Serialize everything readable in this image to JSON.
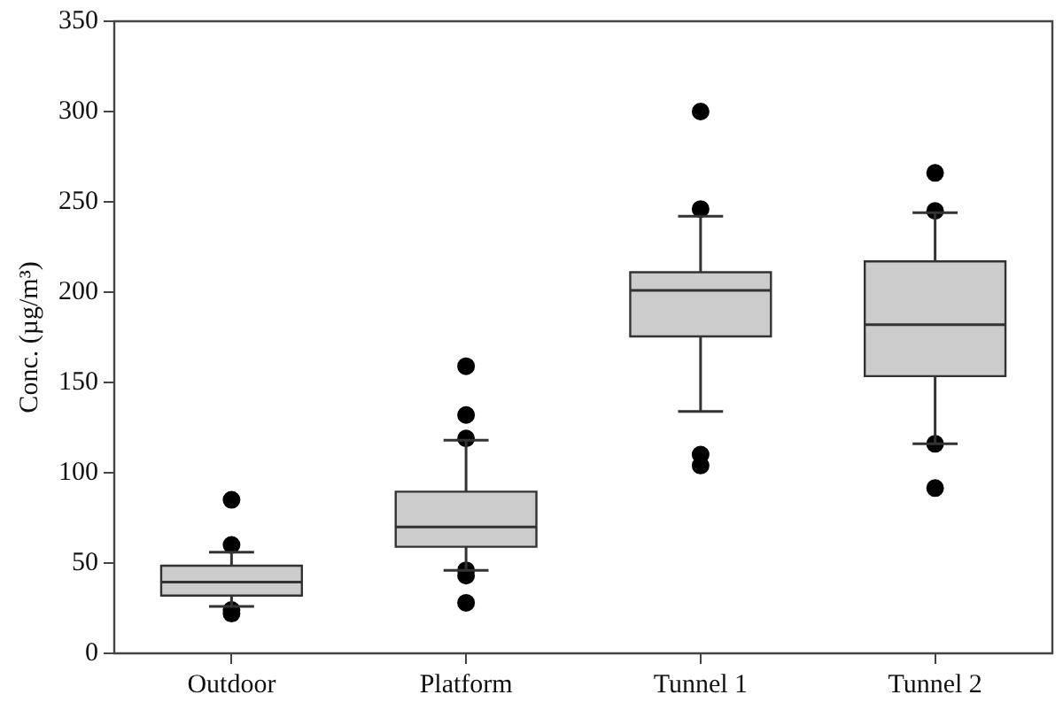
{
  "chart_data": {
    "type": "box",
    "ylabel": "Conc. (µg/m³)",
    "categories": [
      "Outdoor",
      "Platform",
      "Tunnel 1",
      "Tunnel 2"
    ],
    "color": "#cccccc",
    "boxes": [
      {
        "low": 26,
        "q1": 32,
        "median": 39.5,
        "q3": 48.5,
        "high": 56,
        "outliers": [
          85,
          60,
          24,
          22
        ]
      },
      {
        "low": 46,
        "q1": 59,
        "median": 70,
        "q3": 89.5,
        "high": 118,
        "outliers": [
          159,
          132,
          119,
          46,
          43,
          28
        ]
      },
      {
        "low": 134,
        "q1": 175.5,
        "median": 201,
        "q3": 211,
        "high": 242,
        "outliers": [
          300,
          246,
          110,
          104
        ]
      },
      {
        "low": 116,
        "q1": 153.5,
        "median": 182,
        "q3": 217,
        "high": 244,
        "outliers": [
          266,
          245,
          116,
          91.5
        ]
      }
    ],
    "ylim": [
      0,
      350
    ],
    "yticks": [
      0,
      50,
      100,
      150,
      200,
      250,
      300,
      350
    ],
    "grid": false,
    "legend": false
  }
}
